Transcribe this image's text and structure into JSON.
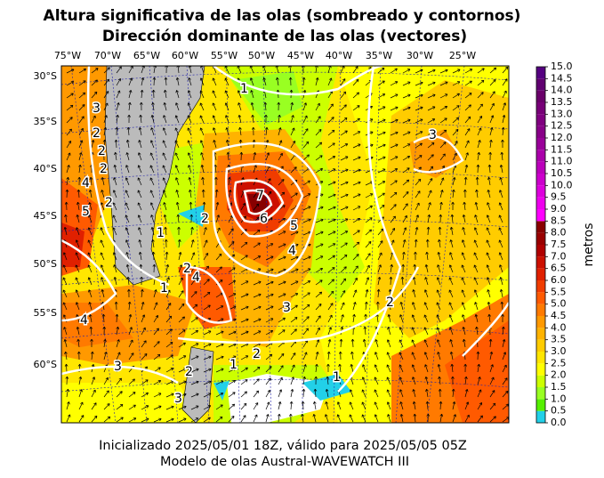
{
  "header": {
    "title_line1": "Altura significativa de las olas (sombreado y contornos)",
    "title_line2": "Dirección dominante de las olas (vectores)"
  },
  "map": {
    "lon_labels": [
      "75°W",
      "70°W",
      "65°W",
      "60°W",
      "55°W",
      "50°W",
      "45°W",
      "40°W",
      "35°W",
      "30°W",
      "25°W"
    ],
    "lat_labels": [
      "30°S",
      "35°S",
      "40°S",
      "45°S",
      "50°S",
      "55°S",
      "60°S"
    ],
    "contour_labels": [
      "1",
      "3",
      "2",
      "2",
      "2",
      "4",
      "5",
      "2",
      "1",
      "7",
      "6",
      "5",
      "4",
      "2",
      "3",
      "4",
      "2",
      "1",
      "4",
      "3",
      "2",
      "1",
      "2",
      "3",
      "2",
      "1",
      "3"
    ]
  },
  "colorbar": {
    "label": "metros",
    "ticks": [
      {
        "value": 0,
        "label": "0.0"
      },
      {
        "value": 0.5,
        "label": "0.5"
      },
      {
        "value": 1,
        "label": "1.0"
      },
      {
        "value": 1.5,
        "label": "1.5"
      },
      {
        "value": 2,
        "label": "2.0"
      },
      {
        "value": 2.5,
        "label": "2.5"
      },
      {
        "value": 3,
        "label": "3.0"
      },
      {
        "value": 3.5,
        "label": "3.5"
      },
      {
        "value": 4,
        "label": "4.0"
      },
      {
        "value": 4.5,
        "label": "4.5"
      },
      {
        "value": 5,
        "label": "5.0"
      },
      {
        "value": 5.5,
        "label": "5.5"
      },
      {
        "value": 6,
        "label": "6.0"
      },
      {
        "value": 6.5,
        "label": "6.5"
      },
      {
        "value": 7,
        "label": "7.0"
      },
      {
        "value": 7.5,
        "label": "7.5"
      },
      {
        "value": 8,
        "label": "8.0"
      },
      {
        "value": 8.5,
        "label": "8.5"
      },
      {
        "value": 9,
        "label": "9.0"
      },
      {
        "value": 9.5,
        "label": "9.5"
      },
      {
        "value": 10,
        "label": "10.0"
      },
      {
        "value": 10.5,
        "label": "10.5"
      },
      {
        "value": 11,
        "label": "11.0"
      },
      {
        "value": 11.5,
        "label": "11.5"
      },
      {
        "value": 12,
        "label": "12.0"
      },
      {
        "value": 12.5,
        "label": "12.5"
      },
      {
        "value": 13,
        "label": "13.0"
      },
      {
        "value": 13.5,
        "label": "13.5"
      },
      {
        "value": 14,
        "label": "14.0"
      },
      {
        "value": 14.5,
        "label": "14.5"
      },
      {
        "value": 15,
        "label": "15.0"
      }
    ],
    "colors": [
      "#22d0e8",
      "#55f000",
      "#99ff22",
      "#ccff00",
      "#ffff00",
      "#ffe600",
      "#ffcc00",
      "#ffb300",
      "#ff9900",
      "#ff7a00",
      "#ff5a00",
      "#f03c00",
      "#e02000",
      "#cc1000",
      "#b00000",
      "#990000",
      "#880000",
      "#ff00ff",
      "#ee00ee",
      "#dd00dd",
      "#cc00cc",
      "#bb00bb",
      "#aa00aa",
      "#990099",
      "#880088",
      "#800080",
      "#770077",
      "#6a006a",
      "#600070",
      "#550080"
    ]
  },
  "footer": {
    "line1": "Inicializado 2025/05/01 18Z, válido para 2025/05/05 05Z",
    "line2": "Modelo de olas Austral-WAVEWATCH III"
  }
}
